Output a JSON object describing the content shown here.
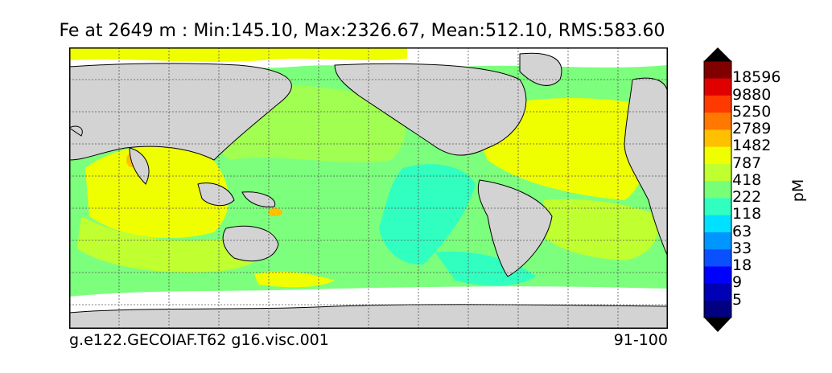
{
  "title": "Fe at 2649 m : Min:145.10, Max:2326.67, Mean:512.10, RMS:583.60",
  "caption_left": "g.e122.GECOIAF.T62 g16.visc.001",
  "caption_right": "91-100",
  "colorbar": {
    "unit": "pM",
    "labels": [
      "18596",
      "9880",
      "5250",
      "2789",
      "1482",
      "787",
      "418",
      "222",
      "118",
      "63",
      "33",
      "18",
      "9",
      "5"
    ],
    "colors": [
      "#000080",
      "#0000b4",
      "#0000ff",
      "#0a50ff",
      "#0096ff",
      "#00e0ff",
      "#30ffc0",
      "#78ff78",
      "#c0ff30",
      "#f0ff00",
      "#ffc000",
      "#ff7800",
      "#ff3a00",
      "#e00000",
      "#800000"
    ],
    "under_color": "#000000",
    "over_color": "#000000"
  },
  "colors": {
    "land": "#d3d3d3",
    "ocean_base": "#7cff7c",
    "yellow": "#f0ff00",
    "yellow_green": "#c0ff30",
    "teal": "#30ffc0",
    "orange": "#ffc000",
    "grid": "#555555"
  }
}
